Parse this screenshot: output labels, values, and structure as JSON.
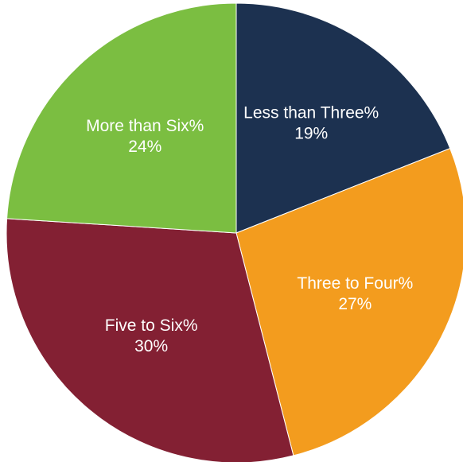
{
  "chart_data": {
    "type": "pie",
    "title": "",
    "start_angle_deg": 0,
    "direction": "clockwise",
    "slices": [
      {
        "label": "Less than Three%",
        "value": 19,
        "value_label": "19%",
        "color": "#1c3150"
      },
      {
        "label": "Three to Four%",
        "value": 27,
        "value_label": "27%",
        "color": "#f39c1e"
      },
      {
        "label": "Five to Six%",
        "value": 30,
        "value_label": "30%",
        "color": "#832033"
      },
      {
        "label": "More than Six%",
        "value": 24,
        "value_label": "24%",
        "color": "#7bbe41"
      }
    ],
    "labels_inside": true,
    "legend": "none"
  }
}
